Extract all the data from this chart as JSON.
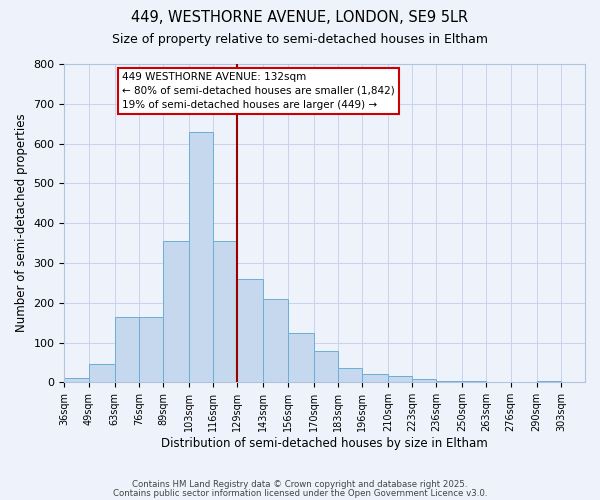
{
  "title": "449, WESTHORNE AVENUE, LONDON, SE9 5LR",
  "subtitle": "Size of property relative to semi-detached houses in Eltham",
  "xlabel": "Distribution of semi-detached houses by size in Eltham",
  "ylabel": "Number of semi-detached properties",
  "bin_labels": [
    "36sqm",
    "49sqm",
    "63sqm",
    "76sqm",
    "89sqm",
    "103sqm",
    "116sqm",
    "129sqm",
    "143sqm",
    "156sqm",
    "170sqm",
    "183sqm",
    "196sqm",
    "210sqm",
    "223sqm",
    "236sqm",
    "250sqm",
    "263sqm",
    "276sqm",
    "290sqm",
    "303sqm"
  ],
  "bin_edges": [
    36,
    49,
    63,
    76,
    89,
    103,
    116,
    129,
    143,
    156,
    170,
    183,
    196,
    210,
    223,
    236,
    250,
    263,
    276,
    290,
    303
  ],
  "bar_heights": [
    10,
    47,
    165,
    165,
    355,
    630,
    355,
    260,
    210,
    125,
    80,
    35,
    22,
    15,
    8,
    3,
    3,
    1,
    1,
    3
  ],
  "bar_color": "#c5d8ee",
  "bar_edge_color": "#6baed6",
  "bg_color": "#eef2fb",
  "grid_color": "#c8d4ec",
  "vline_x": 129,
  "vline_color": "#990000",
  "annotation_title": "449 WESTHORNE AVENUE: 132sqm",
  "annotation_line1": "← 80% of semi-detached houses are smaller (1,842)",
  "annotation_line2": "19% of semi-detached houses are larger (449) →",
  "annotation_box_color": "#ffffff",
  "annotation_box_edge": "#cc0000",
  "ylim": [
    0,
    800
  ],
  "yticks": [
    0,
    100,
    200,
    300,
    400,
    500,
    600,
    700,
    800
  ],
  "footer1": "Contains HM Land Registry data © Crown copyright and database right 2025.",
  "footer2": "Contains public sector information licensed under the Open Government Licence v3.0."
}
